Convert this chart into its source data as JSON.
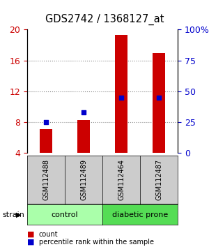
{
  "title": "GDS2742 / 1368127_at",
  "samples": [
    "GSM112488",
    "GSM112489",
    "GSM112464",
    "GSM112487"
  ],
  "counts": [
    7.1,
    8.3,
    19.3,
    17.0
  ],
  "percentiles": [
    25.0,
    33.0,
    45.0,
    45.0
  ],
  "groups": [
    {
      "label": "control",
      "indices": [
        0,
        1
      ],
      "color": "#aaffaa"
    },
    {
      "label": "diabetic prone",
      "indices": [
        2,
        3
      ],
      "color": "#55dd55"
    }
  ],
  "ylim_left": [
    4,
    20
  ],
  "ylim_right": [
    0,
    100
  ],
  "yticks_left": [
    4,
    8,
    12,
    16,
    20
  ],
  "yticks_right": [
    0,
    25,
    50,
    75,
    100
  ],
  "yticklabels_right": [
    "0",
    "25",
    "50",
    "75",
    "100%"
  ],
  "bar_color": "#cc0000",
  "dot_color": "#0000cc",
  "left_tick_color": "#cc0000",
  "right_tick_color": "#0000cc",
  "grid_color": "#888888",
  "bg_color": "#ffffff",
  "sample_box_color": "#cccccc",
  "group_label": "strain",
  "legend_count": "count",
  "legend_percentile": "percentile rank within the sample"
}
